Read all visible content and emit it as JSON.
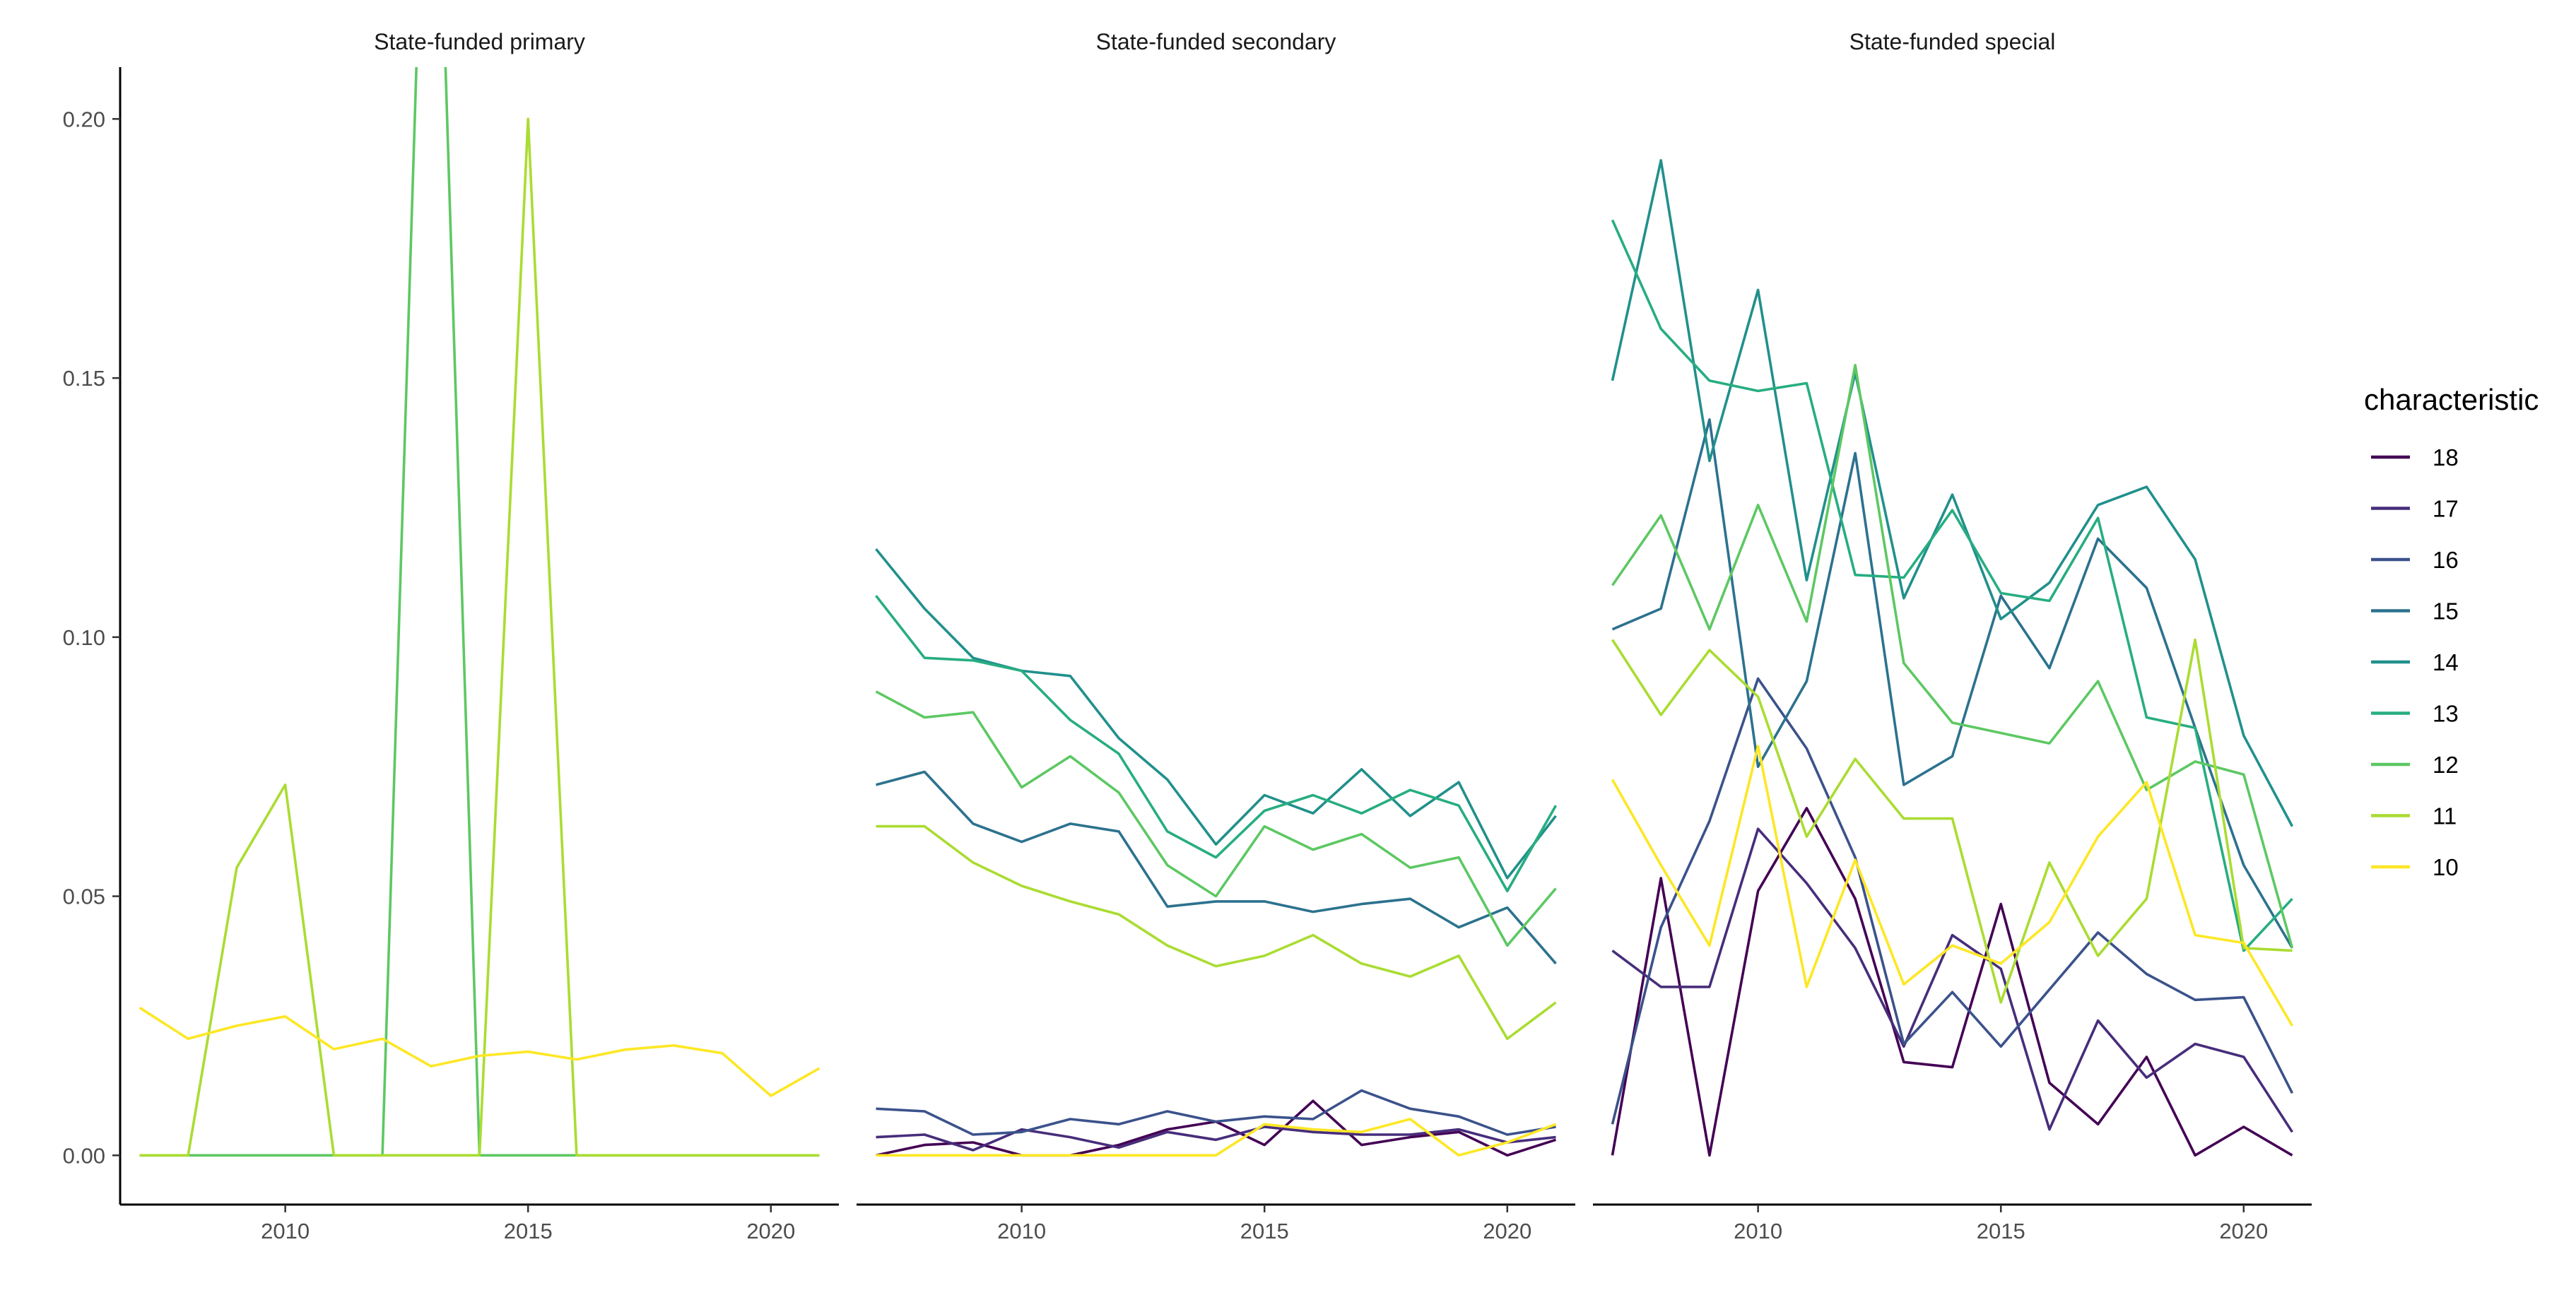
{
  "chart_data": {
    "type": "line",
    "legend": {
      "title": "characteristic",
      "position": "right"
    },
    "x_breaks": [
      2010,
      2015,
      2020
    ],
    "xlim": [
      2006.6,
      2021.4
    ],
    "ylim": [
      -0.0095,
      0.21
    ],
    "y_breaks": [
      0.0,
      0.05,
      0.1,
      0.15,
      0.2
    ],
    "y_tick_labels": [
      "0.00",
      "0.05",
      "0.10",
      "0.15",
      "0.20"
    ],
    "grid": false,
    "colors": {
      "18": "#440154",
      "17": "#472D7B",
      "16": "#3B528B",
      "15": "#2C728E",
      "14": "#21908C",
      "13": "#27AD81",
      "12": "#5DC863",
      "11": "#AADC32",
      "10": "#FDE725"
    },
    "legend_order": [
      "18",
      "17",
      "16",
      "15",
      "14",
      "13",
      "12",
      "11",
      "10"
    ],
    "x": [
      2007,
      2008,
      2009,
      2010,
      2011,
      2012,
      2013,
      2014,
      2015,
      2016,
      2017,
      2018,
      2019,
      2020,
      2021
    ],
    "facets": [
      {
        "title": "State-funded primary",
        "series": [
          {
            "name": "12",
            "values": [
              0,
              0,
              0,
              0,
              0,
              0,
              0.3,
              0,
              0,
              0,
              0,
              0,
              0,
              0,
              0
            ]
          },
          {
            "name": "11",
            "values": [
              0,
              0,
              0.0555,
              0.0715,
              0,
              0,
              0,
              0,
              0.2,
              0,
              0,
              0,
              0,
              0,
              0
            ]
          },
          {
            "name": "10",
            "values": [
              0.0285,
              0.0225,
              0.025,
              0.0268,
              0.0205,
              0.0225,
              0.0172,
              0.0192,
              0.02,
              0.0185,
              0.0204,
              0.0212,
              0.0197,
              0.0115,
              0.0168
            ]
          }
        ]
      },
      {
        "title": "State-funded secondary",
        "series": [
          {
            "name": "18",
            "values": [
              0.0,
              0.002,
              0.0025,
              0.0,
              0.0,
              0.002,
              0.005,
              0.0065,
              0.002,
              0.0105,
              0.002,
              0.0035,
              0.0045,
              0.0,
              0.003
            ]
          },
          {
            "name": "17",
            "values": [
              0.0035,
              0.004,
              0.001,
              0.005,
              0.0035,
              0.0015,
              0.0045,
              0.003,
              0.0055,
              0.0045,
              0.004,
              0.004,
              0.005,
              0.0025,
              0.0035
            ]
          },
          {
            "name": "16",
            "values": [
              0.009,
              0.0085,
              0.004,
              0.0045,
              0.007,
              0.006,
              0.0085,
              0.0065,
              0.0075,
              0.007,
              0.0125,
              0.009,
              0.0075,
              0.004,
              0.0055
            ]
          },
          {
            "name": "15",
            "values": [
              0.0715,
              0.074,
              0.064,
              0.0605,
              0.064,
              0.0625,
              0.048,
              0.049,
              0.049,
              0.047,
              0.0485,
              0.0495,
              0.044,
              0.0478,
              0.037
            ]
          },
          {
            "name": "14",
            "values": [
              0.117,
              0.1055,
              0.096,
              0.0935,
              0.0925,
              0.0805,
              0.0725,
              0.06,
              0.0695,
              0.066,
              0.0745,
              0.0655,
              0.072,
              0.0535,
              0.0655
            ]
          },
          {
            "name": "13",
            "values": [
              0.108,
              0.096,
              0.0955,
              0.0935,
              0.084,
              0.0775,
              0.0625,
              0.0575,
              0.0665,
              0.0695,
              0.066,
              0.0705,
              0.0675,
              0.051,
              0.0675
            ]
          },
          {
            "name": "12",
            "values": [
              0.0895,
              0.0845,
              0.0855,
              0.071,
              0.077,
              0.07,
              0.056,
              0.05,
              0.0635,
              0.059,
              0.062,
              0.0555,
              0.0575,
              0.0405,
              0.0515
            ]
          },
          {
            "name": "11",
            "values": [
              0.0635,
              0.0635,
              0.0565,
              0.052,
              0.049,
              0.0465,
              0.0405,
              0.0365,
              0.0385,
              0.0425,
              0.037,
              0.0345,
              0.0385,
              0.0225,
              0.0295
            ]
          },
          {
            "name": "10",
            "values": [
              0.0,
              0.0,
              0.0,
              0.0,
              0.0,
              0.0,
              0.0,
              0.0,
              0.006,
              0.005,
              0.0045,
              0.007,
              0.0,
              0.0025,
              0.006
            ]
          }
        ]
      },
      {
        "title": "State-funded special",
        "series": [
          {
            "name": "18",
            "values": [
              0.0,
              0.0535,
              0.0,
              0.051,
              0.067,
              0.0495,
              0.018,
              0.017,
              0.0485,
              0.014,
              0.006,
              0.019,
              0.0,
              0.0055,
              0.0
            ]
          },
          {
            "name": "17",
            "values": [
              0.0395,
              0.0325,
              0.0325,
              0.063,
              0.0525,
              0.04,
              0.021,
              0.0425,
              0.036,
              0.005,
              0.026,
              0.015,
              0.0215,
              0.019,
              0.0045
            ]
          },
          {
            "name": "16",
            "values": [
              0.006,
              0.044,
              0.0645,
              0.092,
              0.0785,
              0.0575,
              0.0215,
              0.0315,
              0.021,
              0.032,
              0.043,
              0.035,
              0.03,
              0.0305,
              0.012
            ]
          },
          {
            "name": "15",
            "values": [
              0.1015,
              0.1055,
              0.142,
              0.075,
              0.0915,
              0.1355,
              0.0715,
              0.077,
              0.108,
              0.094,
              0.119,
              0.1095,
              0.0825,
              0.056,
              0.04
            ]
          },
          {
            "name": "14",
            "values": [
              0.1495,
              0.192,
              0.134,
              0.167,
              0.111,
              0.151,
              0.1075,
              0.1275,
              0.1035,
              0.1105,
              0.1255,
              0.129,
              0.115,
              0.081,
              0.0635
            ]
          },
          {
            "name": "13",
            "values": [
              0.1805,
              0.1595,
              0.1495,
              0.1475,
              0.149,
              0.112,
              0.1115,
              0.1245,
              0.1085,
              0.107,
              0.123,
              0.0845,
              0.0825,
              0.0395,
              0.0495
            ]
          },
          {
            "name": "12",
            "values": [
              0.11,
              0.1235,
              0.1015,
              0.1255,
              0.103,
              0.1525,
              0.095,
              0.0835,
              0.0815,
              0.0795,
              0.0915,
              0.0705,
              0.076,
              0.0735,
              0.04
            ]
          },
          {
            "name": "11",
            "values": [
              0.0995,
              0.085,
              0.0975,
              0.0885,
              0.0615,
              0.0765,
              0.065,
              0.065,
              0.0295,
              0.0565,
              0.0385,
              0.0495,
              0.0995,
              0.04,
              0.0395
            ]
          },
          {
            "name": "10",
            "values": [
              0.0725,
              0.056,
              0.0405,
              0.079,
              0.0325,
              0.057,
              0.033,
              0.0405,
              0.037,
              0.045,
              0.0615,
              0.072,
              0.0425,
              0.041,
              0.025
            ]
          }
        ]
      }
    ]
  }
}
